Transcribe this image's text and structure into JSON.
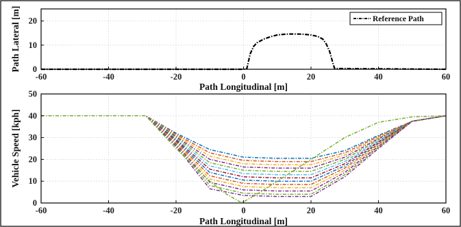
{
  "chart_data": [
    {
      "type": "line",
      "xlabel": "Path Longitudinal [m]",
      "ylabel": "Path Lateral [m]",
      "xlim": [
        -60,
        60
      ],
      "ylim": [
        0,
        25
      ],
      "xticks": [
        "-60",
        "-40",
        "-20",
        "0",
        "20",
        "40",
        "60"
      ],
      "yticks": [
        "0",
        "10",
        "20"
      ],
      "grid": true,
      "legend": "top-right",
      "series": [
        {
          "name": "Reference Path",
          "color": "#000000",
          "style": "dash-dot",
          "x": [
            -60,
            0,
            1,
            1.5,
            2,
            3,
            4,
            6,
            8,
            10,
            12,
            14,
            16,
            18,
            20,
            22,
            23.5,
            24.5,
            25.5,
            26,
            26.5,
            27,
            60
          ],
          "y": [
            0,
            0,
            0.3,
            3.5,
            6.5,
            9.5,
            11,
            12.5,
            13.5,
            14.2,
            14.5,
            14.6,
            14.6,
            14.5,
            14.2,
            13.6,
            12.5,
            10.5,
            7.5,
            5,
            2.5,
            0.3,
            0
          ]
        }
      ]
    },
    {
      "type": "line",
      "xlabel": "Path Longitudinal [m]",
      "ylabel": "Vehicle Speed [kph]",
      "xlim": [
        -60,
        60
      ],
      "ylim": [
        0,
        50
      ],
      "xticks": [
        "-60",
        "-40",
        "-20",
        "0",
        "20",
        "40",
        "60"
      ],
      "yticks": [
        "0",
        "10",
        "20",
        "30",
        "40",
        "50"
      ],
      "grid": true,
      "series": [
        {
          "color": "#0072bd",
          "x": [
            -60,
            -29,
            -20,
            -10,
            0,
            10,
            20,
            30,
            40,
            50,
            60
          ],
          "y": [
            40,
            40,
            32,
            24.5,
            21,
            20.5,
            20.5,
            24,
            31,
            37.5,
            40
          ]
        },
        {
          "color": "#d95319",
          "x": [
            -60,
            -29,
            -20,
            -10,
            0,
            10,
            20,
            30,
            40,
            50,
            60
          ],
          "y": [
            40,
            40,
            31.5,
            23,
            19.5,
            19,
            19,
            23,
            30.5,
            37.5,
            40
          ]
        },
        {
          "color": "#edb120",
          "x": [
            -60,
            -29,
            -20,
            -10,
            0,
            10,
            20,
            30,
            40,
            50,
            60
          ],
          "y": [
            40,
            40,
            31,
            21.5,
            18,
            17.5,
            17.5,
            22,
            30,
            37.5,
            40
          ]
        },
        {
          "color": "#7e2f8e",
          "x": [
            -60,
            -29,
            -20,
            -10,
            0,
            10,
            20,
            30,
            40,
            50,
            60
          ],
          "y": [
            40,
            40,
            30.5,
            20,
            16.5,
            16,
            16,
            21,
            29.5,
            37.5,
            40
          ]
        },
        {
          "color": "#77ac30",
          "x": [
            -60,
            -29,
            -20,
            -10,
            0,
            10,
            20,
            30,
            40,
            50,
            60
          ],
          "y": [
            40,
            40,
            30,
            18.5,
            15,
            14.5,
            14.5,
            20,
            29,
            37.5,
            40
          ]
        },
        {
          "color": "#4dbeee",
          "x": [
            -60,
            -29,
            -20,
            -10,
            0,
            10,
            20,
            30,
            40,
            50,
            60
          ],
          "y": [
            40,
            40,
            29.5,
            17,
            13.5,
            13,
            13,
            19,
            28.5,
            37.5,
            40
          ]
        },
        {
          "color": "#a2142f",
          "x": [
            -60,
            -29,
            -20,
            -10,
            0,
            10,
            20,
            30,
            40,
            50,
            60
          ],
          "y": [
            40,
            40,
            29,
            15.5,
            12,
            11.5,
            11.5,
            18,
            28,
            37.5,
            40
          ]
        },
        {
          "color": "#0072bd",
          "x": [
            -60,
            -29,
            -20,
            -10,
            0,
            10,
            20,
            30,
            40,
            50,
            60
          ],
          "y": [
            40,
            40,
            28.5,
            14,
            10.5,
            10,
            10,
            17,
            27.5,
            37.5,
            40
          ]
        },
        {
          "color": "#d95319",
          "x": [
            -60,
            -29,
            -20,
            -10,
            0,
            10,
            20,
            30,
            40,
            50,
            60
          ],
          "y": [
            40,
            40,
            28,
            12.5,
            9,
            8.5,
            8.5,
            16,
            27,
            37.5,
            40
          ]
        },
        {
          "color": "#edb120",
          "x": [
            -60,
            -29,
            -20,
            -10,
            0,
            10,
            20,
            30,
            40,
            50,
            60
          ],
          "y": [
            40,
            40,
            27.5,
            11,
            7.5,
            7,
            7,
            15,
            26.5,
            37.5,
            40
          ]
        },
        {
          "color": "#7e2f8e",
          "x": [
            -60,
            -29,
            -20,
            -10,
            0,
            10,
            20,
            30,
            40,
            50,
            60
          ],
          "y": [
            40,
            40,
            27,
            9.5,
            6,
            5.5,
            5.5,
            14,
            26,
            37.5,
            40
          ]
        },
        {
          "color": "#77ac30",
          "x": [
            -60,
            -29,
            -20,
            -10,
            0,
            10,
            20,
            30,
            40,
            50,
            60
          ],
          "y": [
            40,
            40,
            26.5,
            8,
            4.5,
            4,
            4,
            13,
            25.5,
            37.5,
            40
          ]
        },
        {
          "color": "#7e2f8e",
          "x": [
            -60,
            -29,
            -20,
            -10,
            0,
            10,
            20,
            30,
            40,
            50,
            60
          ],
          "y": [
            40,
            40,
            26,
            6.5,
            3.5,
            3,
            3,
            12,
            25,
            37.5,
            40
          ]
        },
        {
          "color": "#77ac30",
          "x": [
            -60,
            -29,
            -20,
            -10,
            -5,
            -1,
            0,
            5,
            10,
            20,
            30,
            40,
            50,
            60
          ],
          "y": [
            40,
            40,
            25,
            10,
            4,
            0.5,
            0.5,
            5,
            10,
            20,
            30,
            37,
            39.5,
            40
          ]
        }
      ]
    }
  ]
}
